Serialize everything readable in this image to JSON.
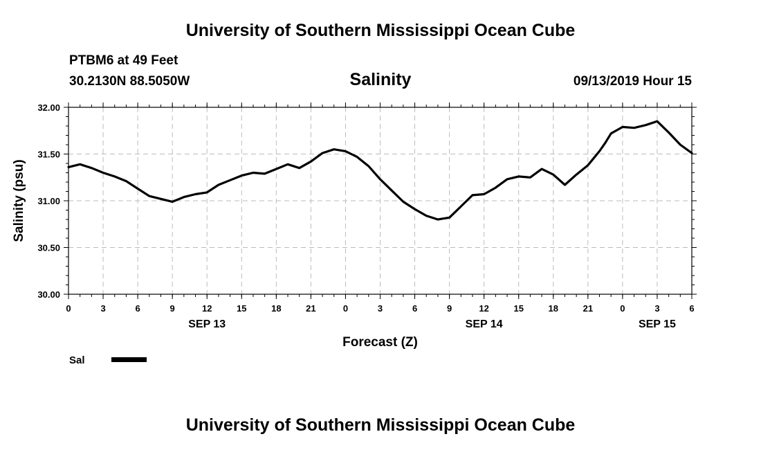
{
  "header": {
    "title": "University of Southern Mississippi Ocean Cube",
    "station": "PTBM6 at 49 Feet",
    "coordinates": "30.2130N 88.5050W",
    "datetime": "09/13/2019 Hour 15"
  },
  "footer": {
    "title": "University of Southern Mississippi Ocean Cube"
  },
  "chart_data": {
    "type": "line",
    "title": "Salinity",
    "xlabel": "Forecast (Z)",
    "ylabel": "Salinity (psu)",
    "ylim": [
      30.0,
      32.0
    ],
    "y_ticks": [
      "30.00",
      "30.50",
      "31.00",
      "31.50",
      "32.00"
    ],
    "x_range_hours": [
      0,
      54
    ],
    "x_ticks": [
      "0",
      "3",
      "6",
      "9",
      "12",
      "15",
      "18",
      "21",
      "0",
      "3",
      "6",
      "9",
      "12",
      "15",
      "18",
      "21",
      "0",
      "3",
      "6"
    ],
    "date_labels": [
      {
        "label": "SEP 13",
        "hour": 12
      },
      {
        "label": "SEP 14",
        "hour": 36
      },
      {
        "label": "SEP 15",
        "hour": 51
      }
    ],
    "grid": true,
    "legend": [
      {
        "name": "Sal",
        "color": "#000000"
      }
    ],
    "legend_position": "bottom-left",
    "series": [
      {
        "name": "Sal",
        "x": [
          0,
          1,
          2,
          3,
          4,
          5,
          6,
          7,
          8,
          9,
          10,
          11,
          12,
          13,
          14,
          15,
          16,
          17,
          18,
          19,
          20,
          21,
          22,
          23,
          24,
          25,
          26,
          27,
          28,
          29,
          30,
          31,
          32,
          33,
          34,
          35,
          36,
          37,
          38,
          39,
          40,
          41,
          42,
          43,
          44,
          45,
          46,
          46.5,
          47,
          48,
          49,
          50,
          51,
          52,
          53,
          54
        ],
        "values": [
          31.36,
          31.39,
          31.35,
          31.3,
          31.26,
          31.21,
          31.13,
          31.05,
          31.02,
          30.99,
          31.04,
          31.07,
          31.09,
          31.17,
          31.22,
          31.27,
          31.3,
          31.29,
          31.34,
          31.39,
          31.35,
          31.42,
          31.51,
          31.55,
          31.53,
          31.47,
          31.37,
          31.23,
          31.11,
          30.99,
          30.91,
          30.84,
          30.8,
          30.82,
          30.94,
          31.06,
          31.07,
          31.14,
          31.23,
          31.26,
          31.25,
          31.34,
          31.28,
          31.17,
          31.28,
          31.38,
          31.53,
          31.62,
          31.72,
          31.79,
          31.78,
          31.81,
          31.85,
          31.73,
          31.6,
          31.51
        ]
      }
    ]
  }
}
